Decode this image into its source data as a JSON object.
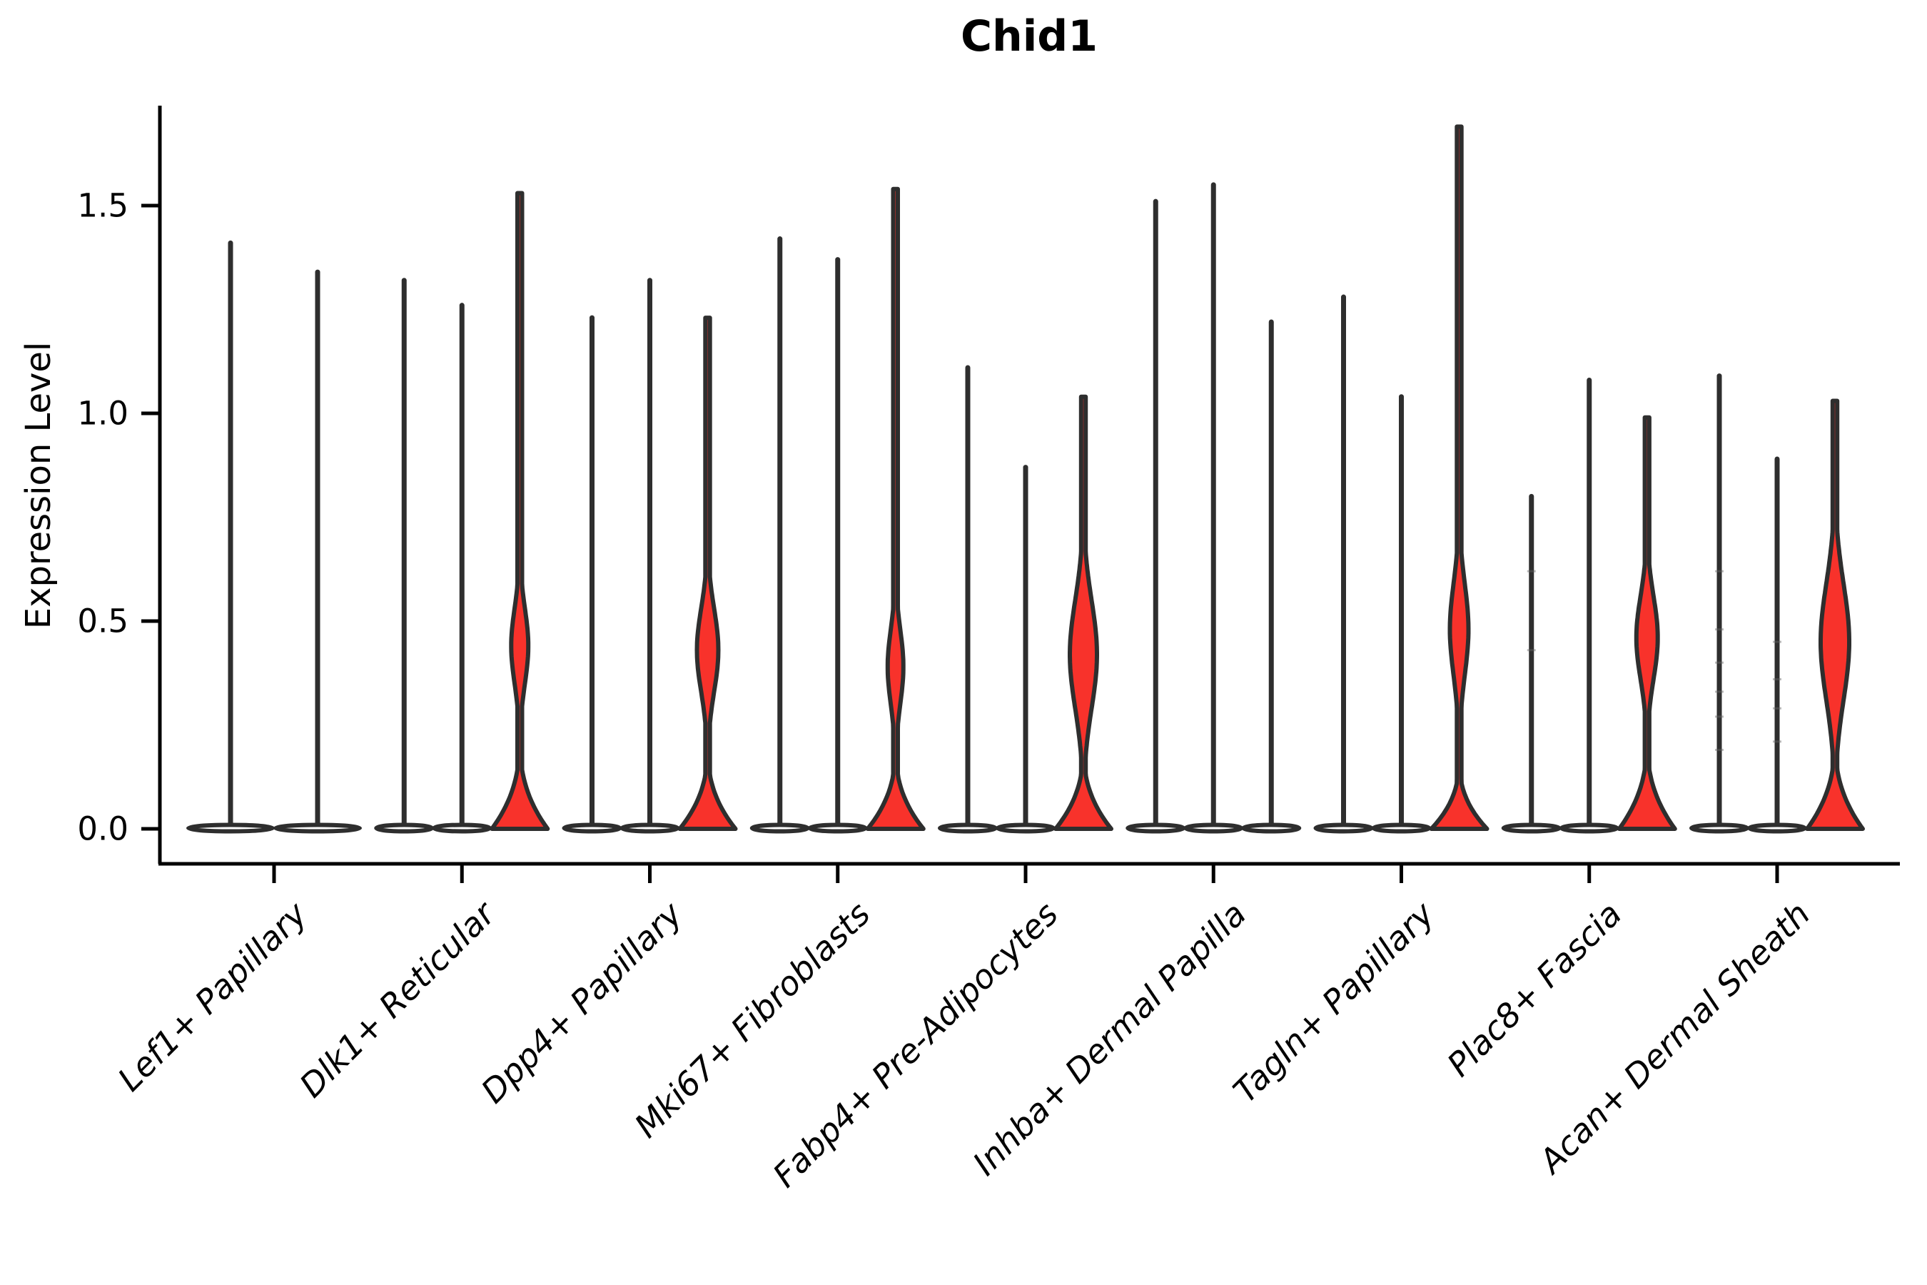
{
  "title": "Chid1",
  "ylabel": "Expression Level",
  "colors": {
    "background": "#ffffff",
    "violin_fill_red": "#f8322b",
    "violin_stroke": "#2e2e2e",
    "axis_color": "#000000",
    "point_color": "#666666"
  },
  "y_axis": {
    "label": "Expression Level",
    "tick_labels": [
      "0.0",
      "0.5",
      "1.0",
      "1.5"
    ],
    "tick_values": [
      0,
      0.5,
      1.0,
      1.5
    ],
    "shown_range": [
      0,
      1.74
    ]
  },
  "chart_data": {
    "type": "violin",
    "title": "Chid1",
    "xlabel": "",
    "ylabel": "Expression Level",
    "ylim": [
      0,
      1.74
    ],
    "grid": false,
    "legend": "none",
    "description": "Single-gene (Chid1) expression violin plot across 9 fibroblast cell-type groups; each group holds 2-3 sub-violins. Most sub-violins are near-zero pancakes with a thin spike to the max expressed value; one violin per most groups is red-filled with a wide base at 0 and a mid bulge.",
    "categories": [
      "Lef1+ Papillary",
      "Dlk1+ Reticular",
      "Dpp4+ Papillary",
      "Mki67+ Fibroblasts",
      "Fabp4+ Pre-Adipocytes",
      "Inhba+ Dermal Papilla",
      "Tagln+ Papillary",
      "Plac8+ Fascia",
      "Acan+ Dermal Sheath"
    ],
    "groups": [
      {
        "label": "Lef1+ Papillary",
        "violins": [
          {
            "max": 1.41,
            "filled": false
          },
          {
            "max": 1.34,
            "filled": false
          }
        ]
      },
      {
        "label": "Dlk1+ Reticular",
        "violins": [
          {
            "max": 1.32,
            "filled": false
          },
          {
            "max": 1.26,
            "filled": false
          },
          {
            "max": 1.53,
            "filled": true,
            "neck": 0.22,
            "bulge_center": 0.44,
            "bulge_sd": 0.09,
            "bulge_halfwidth": 12
          }
        ]
      },
      {
        "label": "Dpp4+ Papillary",
        "violins": [
          {
            "max": 1.23,
            "filled": false
          },
          {
            "max": 1.32,
            "filled": false
          },
          {
            "max": 1.23,
            "filled": true,
            "neck": 0.2,
            "bulge_center": 0.43,
            "bulge_sd": 0.1,
            "bulge_halfwidth": 15
          }
        ]
      },
      {
        "label": "Mki67+ Fibroblasts",
        "violins": [
          {
            "max": 1.42,
            "filled": false
          },
          {
            "max": 1.37,
            "filled": false
          },
          {
            "max": 1.54,
            "filled": true,
            "neck": 0.2,
            "bulge_center": 0.39,
            "bulge_sd": 0.09,
            "bulge_halfwidth": 11
          }
        ]
      },
      {
        "label": "Fabp4+ Pre-Adipocytes",
        "violins": [
          {
            "max": 1.11,
            "filled": false
          },
          {
            "max": 0.87,
            "filled": false
          },
          {
            "max": 1.04,
            "filled": true,
            "neck": 0.2,
            "bulge_center": 0.42,
            "bulge_sd": 0.13,
            "bulge_halfwidth": 19
          }
        ]
      },
      {
        "label": "Inhba+ Dermal Papilla",
        "violins": [
          {
            "max": 1.51,
            "filled": false
          },
          {
            "max": 1.55,
            "filled": false
          },
          {
            "max": 1.22,
            "filled": false
          }
        ]
      },
      {
        "label": "Tagln+ Papillary",
        "violins": [
          {
            "max": 1.28,
            "filled": false
          },
          {
            "max": 1.04,
            "filled": false
          },
          {
            "max": 1.69,
            "filled": true,
            "neck": 0.17,
            "bulge_center": 0.48,
            "bulge_sd": 0.11,
            "bulge_halfwidth": 13
          }
        ]
      },
      {
        "label": "Plac8+ Fascia",
        "violins": [
          {
            "max": 0.8,
            "filled": false,
            "points": [
              0.43,
              0.62
            ]
          },
          {
            "max": 1.08,
            "filled": false
          },
          {
            "max": 0.99,
            "filled": true,
            "neck": 0.22,
            "bulge_center": 0.46,
            "bulge_sd": 0.1,
            "bulge_halfwidth": 15
          }
        ]
      },
      {
        "label": "Acan+ Dermal Sheath",
        "violins": [
          {
            "max": 1.09,
            "filled": false,
            "points": [
              0.19,
              0.27,
              0.33,
              0.4,
              0.48,
              0.62
            ]
          },
          {
            "max": 0.89,
            "filled": false,
            "points": [
              0.21,
              0.29,
              0.36,
              0.45
            ]
          },
          {
            "max": 1.03,
            "filled": true,
            "neck": 0.22,
            "bulge_center": 0.45,
            "bulge_sd": 0.14,
            "bulge_halfwidth": 20
          }
        ]
      }
    ]
  }
}
